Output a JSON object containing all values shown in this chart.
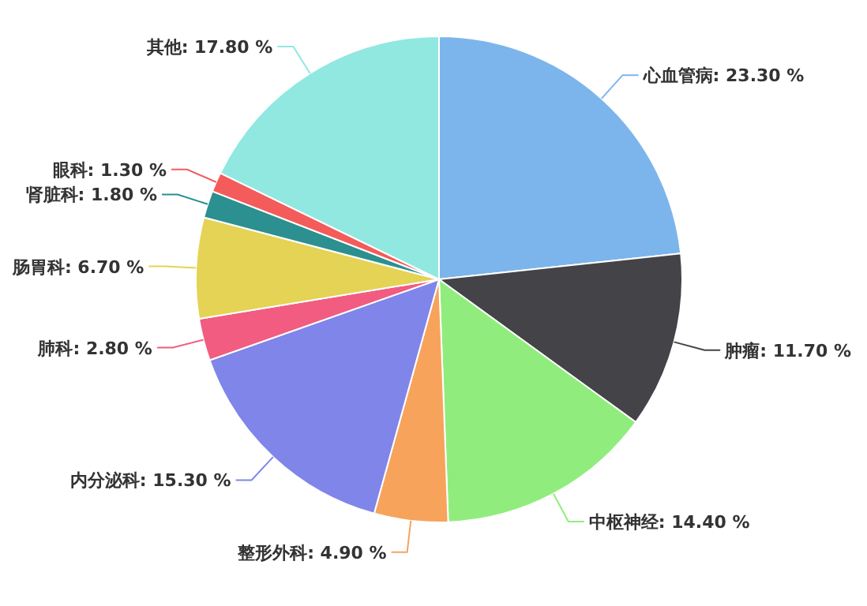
{
  "chart_data": {
    "type": "pie",
    "categories": [
      "心血管病",
      "肿瘤",
      "中枢神经",
      "整形外科",
      "内分泌科",
      "肺科",
      "肠胃科",
      "肾脏科",
      "眼科",
      "其他"
    ],
    "values": [
      23.3,
      11.7,
      14.4,
      4.9,
      15.3,
      2.8,
      6.7,
      1.8,
      1.3,
      17.8
    ],
    "value_labels": [
      "23.30 %",
      "11.70 %",
      "14.40 %",
      "4.90 %",
      "15.30 %",
      "2.80 %",
      "6.70 %",
      "1.80 %",
      "1.30 %",
      "17.80 %"
    ],
    "colors": [
      "#7cb5ec",
      "#434348",
      "#90ed7d",
      "#f7a35c",
      "#8085e9",
      "#f15c80",
      "#e4d354",
      "#2b908f",
      "#f45b5b",
      "#91e8e1"
    ],
    "legend": false
  }
}
